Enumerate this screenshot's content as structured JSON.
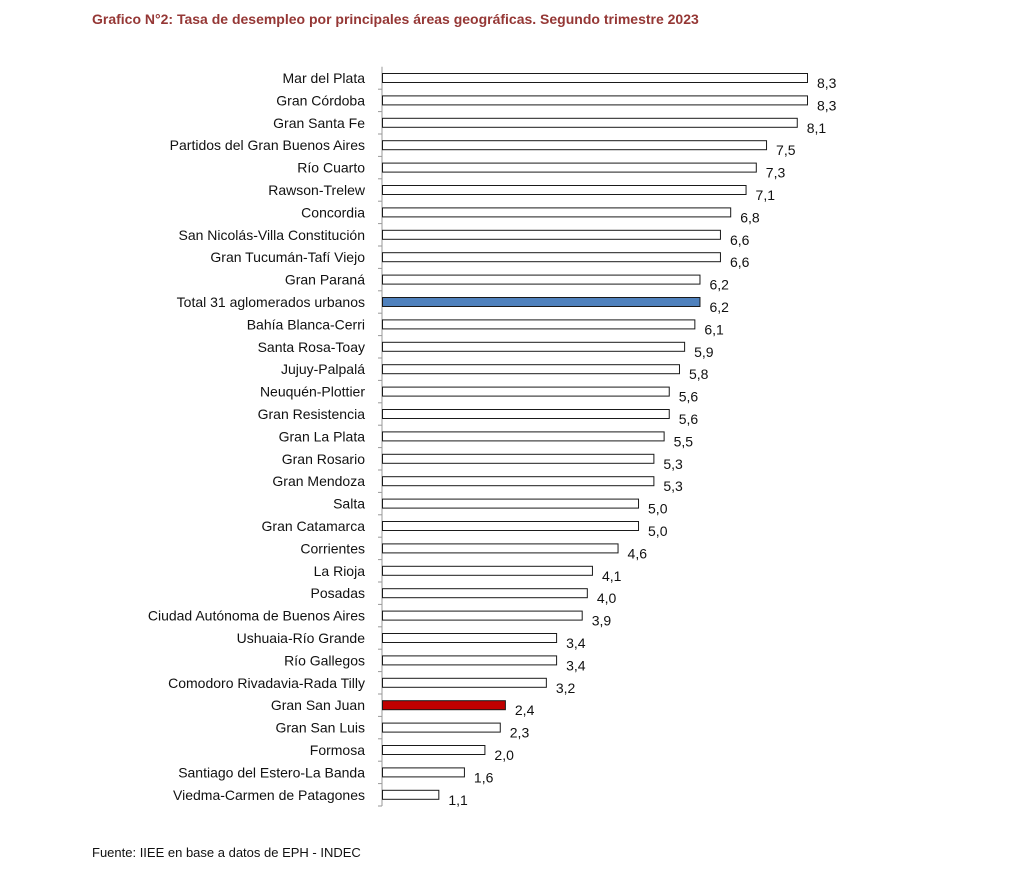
{
  "chart_data": {
    "type": "bar",
    "orientation": "horizontal",
    "title": "Grafico N°2: Tasa de desempleo por principales áreas geográficas.  Segundo trimestre 2023",
    "source": "Fuente: IIEE en base a datos de EPH - INDEC",
    "xlabel": "",
    "ylabel": "",
    "xlim": [
      0,
      8.3
    ],
    "grid": false,
    "legend": "none",
    "colors": {
      "default_bar": "#ffffff",
      "bar_outline": "#1a1a1a",
      "highlight_total": "#4f81bd",
      "highlight_gran_san_juan": "#c00000",
      "title": "#953735",
      "axis": "#999999"
    },
    "categories": [
      "Mar del Plata",
      "Gran Córdoba",
      "Gran Santa Fe",
      "Partidos del Gran Buenos Aires",
      "Río Cuarto",
      "Rawson-Trelew",
      "Concordia",
      "San Nicolás-Villa Constitución",
      "Gran Tucumán-Tafí Viejo",
      "Gran Paraná",
      "Total 31 aglomerados urbanos",
      "Bahía Blanca-Cerri",
      "Santa Rosa-Toay",
      "Jujuy-Palpalá",
      "Neuquén-Plottier",
      "Gran Resistencia",
      "Gran La Plata",
      "Gran Rosario",
      "Gran Mendoza",
      "Salta",
      "Gran Catamarca",
      "Corrientes",
      "La Rioja",
      "Posadas",
      "Ciudad Autónoma de Buenos Aires",
      "Ushuaia-Río Grande",
      "Río Gallegos",
      "Comodoro Rivadavia-Rada Tilly",
      "Gran San Juan",
      "Gran San Luis",
      "Formosa",
      "Santiago del Estero-La Banda",
      "Viedma-Carmen de Patagones"
    ],
    "values": [
      8.3,
      8.3,
      8.1,
      7.5,
      7.3,
      7.1,
      6.8,
      6.6,
      6.6,
      6.2,
      6.2,
      6.1,
      5.9,
      5.8,
      5.6,
      5.6,
      5.5,
      5.3,
      5.3,
      5.0,
      5.0,
      4.6,
      4.1,
      4.0,
      3.9,
      3.4,
      3.4,
      3.2,
      2.4,
      2.3,
      2.0,
      1.6,
      1.1
    ],
    "data_labels": [
      "8,3",
      "8,3",
      "8,1",
      "7,5",
      "7,3",
      "7,1",
      "6,8",
      "6,6",
      "6,6",
      "6,2",
      "6,2",
      "6,1",
      "5,9",
      "5,8",
      "5,6",
      "5,6",
      "5,5",
      "5,3",
      "5,3",
      "5,0",
      "5,0",
      "4,6",
      "4,1",
      "4,0",
      "3,9",
      "3,4",
      "3,4",
      "3,2",
      "2,4",
      "2,3",
      "2,0",
      "1,6",
      "1,1"
    ],
    "highlights": {
      "Total 31 aglomerados urbanos": "highlight_total",
      "Gran San Juan": "highlight_gran_san_juan"
    }
  }
}
